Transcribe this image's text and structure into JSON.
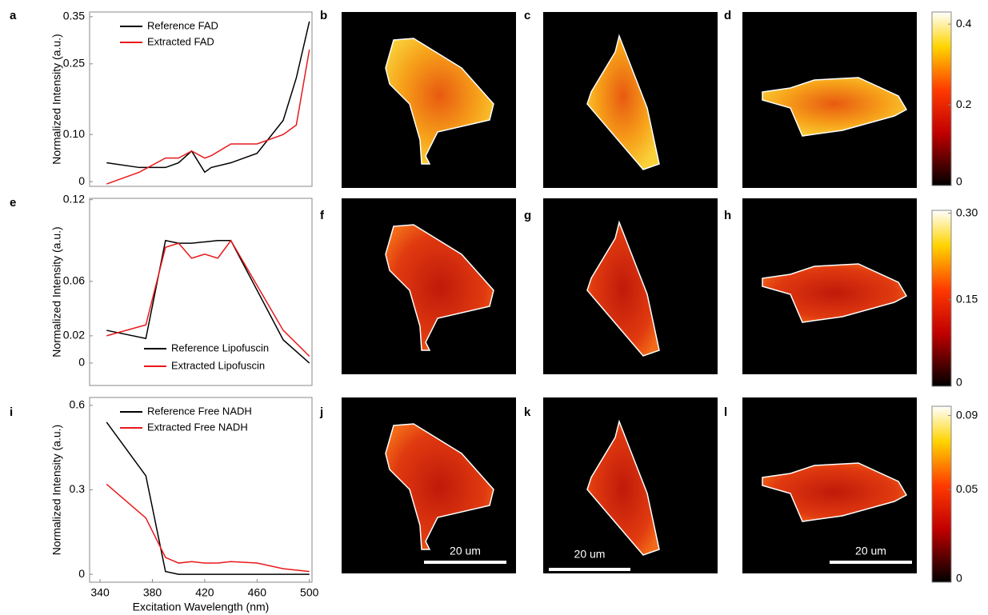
{
  "panel_labels": [
    "a",
    "b",
    "c",
    "d",
    "e",
    "f",
    "g",
    "h",
    "i",
    "j",
    "k",
    "l"
  ],
  "chart_data": [
    {
      "type": "line",
      "ylabel": "Normalized Intensity (a.u.)",
      "legend": "upper left",
      "x": [
        345,
        370,
        390,
        400,
        410,
        420,
        425,
        440,
        460,
        480,
        490,
        500
      ],
      "xlim": [
        332,
        502
      ],
      "ylim": [
        -0.01,
        0.36
      ],
      "yticks": [
        0,
        {
          "value": 0.1,
          "label": "0.10"
        },
        0.25,
        0.35
      ],
      "series": [
        {
          "name": "Reference FAD",
          "color": "#000000",
          "values": [
            0.04,
            0.03,
            0.03,
            0.04,
            0.065,
            0.02,
            0.03,
            0.04,
            0.06,
            0.13,
            0.22,
            0.34
          ]
        },
        {
          "name": "Extracted FAD",
          "color": "#e8191b",
          "values": [
            -0.005,
            0.02,
            0.05,
            0.05,
            0.065,
            0.05,
            0.055,
            0.08,
            0.08,
            0.1,
            0.12,
            0.28
          ]
        }
      ]
    },
    {
      "type": "line",
      "ylabel": "Normalized Intensity (a.u.)",
      "legend": "lower center",
      "x": [
        345,
        375,
        390,
        400,
        410,
        420,
        430,
        440,
        480,
        500
      ],
      "xlim": [
        332,
        502
      ],
      "ylim": [
        -0.0165,
        0.121
      ],
      "yticks": [
        0,
        0.02,
        0.06,
        0.12
      ],
      "series": [
        {
          "name": "Reference Lipofuscin",
          "color": "#000000",
          "values": [
            0.024,
            0.018,
            0.09,
            0.088,
            0.088,
            0.089,
            0.09,
            0.09,
            0.017,
            0
          ]
        },
        {
          "name": "Extracted Lipofuscin",
          "color": "#e8191b",
          "values": [
            0.02,
            0.028,
            0.085,
            0.088,
            0.077,
            0.08,
            0.077,
            0.09,
            0.024,
            0.005
          ]
        }
      ]
    },
    {
      "type": "line",
      "ylabel": "Normalized Intensity (a.u.)",
      "xlabel": "Excitation Wavelength (nm)",
      "legend": "upper left",
      "x": [
        345,
        375,
        390,
        400,
        410,
        420,
        430,
        440,
        460,
        480,
        500
      ],
      "xlim": [
        332,
        502
      ],
      "ylim": [
        -0.028,
        0.628
      ],
      "xticks": [
        340,
        380,
        420,
        460,
        500
      ],
      "yticks": [
        0,
        0.3,
        0.6
      ],
      "series": [
        {
          "name": "Reference Free NADH",
          "color": "#000000",
          "values": [
            0.54,
            0.35,
            0.01,
            0,
            0,
            0,
            0,
            0,
            0,
            0,
            0
          ]
        },
        {
          "name": "Extracted Free NADH",
          "color": "#e8191b",
          "values": [
            0.32,
            0.2,
            0.06,
            0.04,
            0.045,
            0.04,
            0.04,
            0.045,
            0.04,
            0.02,
            0.01
          ]
        }
      ]
    }
  ],
  "colorbars": [
    {
      "lim": [
        0,
        0.43
      ],
      "ticks": [
        0,
        0.2,
        0.4
      ]
    },
    {
      "lim": [
        0,
        0.305
      ],
      "ticks": [
        0,
        0.15,
        {
          "value": 0.3,
          "label": "0.30"
        }
      ]
    },
    {
      "lim": [
        0,
        0.095
      ],
      "ticks": [
        0,
        0.05,
        0.09
      ]
    }
  ],
  "scale_bars": [
    "20 um",
    "20 um",
    "20 um"
  ]
}
